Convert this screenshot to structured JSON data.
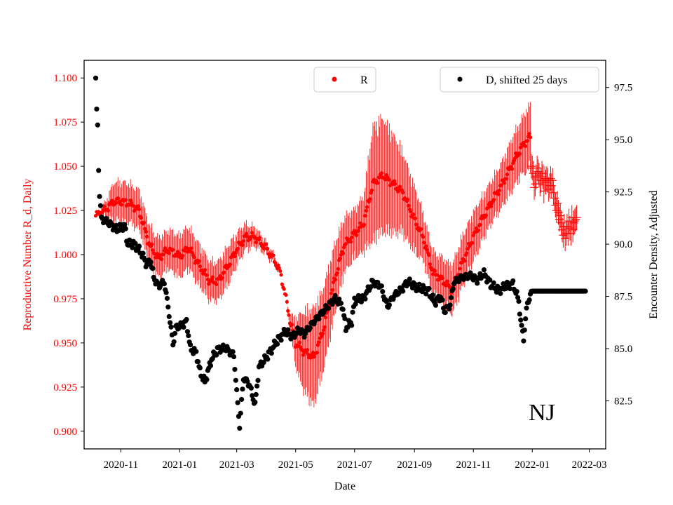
{
  "chart_data": {
    "type": "scatter",
    "state_label": "NJ",
    "xlabel": "Date",
    "ylabel_left": "Reproductive Number R_d, Daily",
    "ylabel_right": "Encounter Density, Adjusted",
    "x_range": [
      "2020-09-24",
      "2022-03-18"
    ],
    "ylim_left": [
      0.89,
      1.11
    ],
    "ylim_right": [
      80.2,
      98.8
    ],
    "x_ticks": [
      {
        "date": "2020-11-01",
        "label": "2020-11"
      },
      {
        "date": "2021-01-01",
        "label": "2021-01"
      },
      {
        "date": "2021-03-01",
        "label": "2021-03"
      },
      {
        "date": "2021-05-01",
        "label": "2021-05"
      },
      {
        "date": "2021-07-01",
        "label": "2021-07"
      },
      {
        "date": "2021-09-01",
        "label": "2021-09"
      },
      {
        "date": "2021-11-01",
        "label": "2021-11"
      },
      {
        "date": "2022-01-01",
        "label": "2022-01"
      },
      {
        "date": "2022-03-01",
        "label": "2022-03"
      }
    ],
    "y_ticks_left": [
      {
        "value": 0.9,
        "label": "0.900"
      },
      {
        "value": 0.925,
        "label": "0.925"
      },
      {
        "value": 0.95,
        "label": "0.950"
      },
      {
        "value": 0.975,
        "label": "0.975"
      },
      {
        "value": 1.0,
        "label": "1.000"
      },
      {
        "value": 1.025,
        "label": "1.025"
      },
      {
        "value": 1.05,
        "label": "1.050"
      },
      {
        "value": 1.075,
        "label": "1.075"
      },
      {
        "value": 1.1,
        "label": "1.100"
      }
    ],
    "y_ticks_right": [
      {
        "value": 82.5,
        "label": "82.5"
      },
      {
        "value": 85.0,
        "label": "85.0"
      },
      {
        "value": 87.5,
        "label": "87.5"
      },
      {
        "value": 90.0,
        "label": "90.0"
      },
      {
        "value": 92.5,
        "label": "92.5"
      },
      {
        "value": 95.0,
        "label": "95.0"
      },
      {
        "value": 97.5,
        "label": "97.5"
      }
    ],
    "legend": [
      {
        "label": "R",
        "color": "#ff0000",
        "placement": "top-center"
      },
      {
        "label": "D, shifted 25 days",
        "color": "#000000",
        "placement": "top-right"
      }
    ],
    "series": [
      {
        "name": "R",
        "axis": "left",
        "color": "#ff0000",
        "marker": "dot with daily error bars",
        "key_points": [
          [
            "2020-10-06",
            1.022,
            0.0
          ],
          [
            "2020-10-15",
            1.025,
            0.004
          ],
          [
            "2020-10-25",
            1.03,
            0.012
          ],
          [
            "2020-11-03",
            1.03,
            0.012
          ],
          [
            "2020-11-10",
            1.029,
            0.012
          ],
          [
            "2020-11-20",
            1.025,
            0.012
          ],
          [
            "2020-12-01",
            1.005,
            0.012
          ],
          [
            "2020-12-10",
            0.998,
            0.012
          ],
          [
            "2020-12-20",
            1.003,
            0.012
          ],
          [
            "2021-01-01",
            0.999,
            0.013
          ],
          [
            "2021-01-10",
            1.004,
            0.013
          ],
          [
            "2021-01-20",
            0.995,
            0.013
          ],
          [
            "2021-02-01",
            0.985,
            0.012
          ],
          [
            "2021-02-10",
            0.985,
            0.012
          ],
          [
            "2021-02-20",
            0.994,
            0.012
          ],
          [
            "2021-03-01",
            1.003,
            0.01
          ],
          [
            "2021-03-10",
            1.01,
            0.008
          ],
          [
            "2021-03-20",
            1.01,
            0.006
          ],
          [
            "2021-03-31",
            1.004,
            0.004
          ],
          [
            "2021-04-10",
            0.996,
            0.003
          ],
          [
            "2021-04-15",
            0.99,
            0.001
          ],
          [
            "2021-04-20",
            0.978,
            0.0
          ],
          [
            "2021-04-25",
            0.963,
            0.004
          ],
          [
            "2021-05-01",
            0.95,
            0.015
          ],
          [
            "2021-05-10",
            0.945,
            0.025
          ],
          [
            "2021-05-20",
            0.942,
            0.03
          ],
          [
            "2021-05-30",
            0.958,
            0.025
          ],
          [
            "2021-06-10",
            0.985,
            0.022
          ],
          [
            "2021-06-20",
            1.005,
            0.017
          ],
          [
            "2021-07-01",
            1.012,
            0.015
          ],
          [
            "2021-07-10",
            1.017,
            0.017
          ],
          [
            "2021-07-20",
            1.04,
            0.035
          ],
          [
            "2021-07-30",
            1.045,
            0.035
          ],
          [
            "2021-08-10",
            1.04,
            0.03
          ],
          [
            "2021-08-20",
            1.035,
            0.025
          ],
          [
            "2021-09-01",
            1.02,
            0.02
          ],
          [
            "2021-09-10",
            1.01,
            0.015
          ],
          [
            "2021-09-20",
            0.99,
            0.013
          ],
          [
            "2021-10-01",
            0.985,
            0.014
          ],
          [
            "2021-10-10",
            0.98,
            0.015
          ],
          [
            "2021-10-20",
            0.995,
            0.016
          ],
          [
            "2021-11-01",
            1.01,
            0.015
          ],
          [
            "2021-11-10",
            1.02,
            0.014
          ],
          [
            "2021-11-20",
            1.03,
            0.013
          ],
          [
            "2021-12-01",
            1.04,
            0.014
          ],
          [
            "2021-12-10",
            1.05,
            0.016
          ],
          [
            "2021-12-20",
            1.06,
            0.017
          ],
          [
            "2021-12-30",
            1.067,
            0.02
          ]
        ],
        "crosses": [
          [
            1.05,
            0.007
          ],
          [
            1.049,
            0.007
          ],
          [
            1.046,
            0.007
          ],
          [
            1.038,
            0.007
          ],
          [
            1.04,
            0.007
          ],
          [
            1.044,
            0.007
          ],
          [
            1.049,
            0.007
          ],
          [
            1.047,
            0.007
          ],
          [
            1.045,
            0.007
          ],
          [
            1.04,
            0.007
          ],
          [
            1.042,
            0.007
          ],
          [
            1.046,
            0.007
          ],
          [
            1.044,
            0.007
          ],
          [
            1.036,
            0.007
          ],
          [
            1.043,
            0.007
          ],
          [
            1.041,
            0.007
          ],
          [
            1.043,
            0.007
          ],
          [
            1.042,
            0.007
          ],
          [
            1.037,
            0.007
          ],
          [
            1.039,
            0.007
          ],
          [
            1.043,
            0.007
          ],
          [
            1.039,
            0.007
          ],
          [
            1.042,
            0.007
          ],
          [
            1.035,
            0.007
          ],
          [
            1.032,
            0.007
          ],
          [
            1.028,
            0.007
          ],
          [
            1.025,
            0.007
          ],
          [
            1.029,
            0.007
          ],
          [
            1.024,
            0.007
          ],
          [
            1.02,
            0.007
          ],
          [
            1.022,
            0.007
          ],
          [
            1.018,
            0.007
          ],
          [
            1.014,
            0.007
          ],
          [
            1.011,
            0.007
          ],
          [
            1.016,
            0.007
          ],
          [
            1.009,
            0.007
          ],
          [
            1.012,
            0.007
          ],
          [
            1.016,
            0.007
          ],
          [
            1.012,
            0.007
          ],
          [
            1.019,
            0.007
          ],
          [
            1.015,
            0.007
          ],
          [
            1.012,
            0.007
          ],
          [
            1.021,
            0.007
          ],
          [
            1.014,
            0.007
          ],
          [
            1.018,
            0.007
          ],
          [
            1.019,
            0.007
          ],
          [
            1.02,
            0.007
          ],
          [
            1.021,
            0.007
          ]
        ]
      },
      {
        "name": "D, shifted 25 days",
        "axis": "right",
        "color": "#000000",
        "marker": "dot",
        "key_points": [
          [
            "2020-10-06",
            97.95
          ],
          [
            "2020-10-07",
            96.35
          ],
          [
            "2020-10-08",
            95.65
          ],
          [
            "2020-10-09",
            93.6
          ],
          [
            "2020-10-10",
            92.4
          ],
          [
            "2020-10-12",
            91.2
          ],
          [
            "2020-10-20",
            91.0
          ],
          [
            "2020-10-28",
            90.7
          ],
          [
            "2020-11-05",
            90.9
          ],
          [
            "2020-11-08",
            90.0
          ],
          [
            "2020-11-15",
            90.0
          ],
          [
            "2020-11-22",
            89.6
          ],
          [
            "2020-11-28",
            89.0
          ],
          [
            "2020-12-02",
            89.2
          ],
          [
            "2020-12-05",
            88.4
          ],
          [
            "2020-12-10",
            88.0
          ],
          [
            "2020-12-16",
            88.2
          ],
          [
            "2020-12-20",
            87.0
          ],
          [
            "2020-12-22",
            86.3
          ],
          [
            "2020-12-25",
            85.2
          ],
          [
            "2020-12-28",
            86.0
          ],
          [
            "2021-01-03",
            86.1
          ],
          [
            "2021-01-08",
            86.3
          ],
          [
            "2021-01-12",
            85.0
          ],
          [
            "2021-01-18",
            84.8
          ],
          [
            "2021-01-22",
            83.9
          ],
          [
            "2021-01-27",
            83.4
          ],
          [
            "2021-02-03",
            84.5
          ],
          [
            "2021-02-10",
            85.0
          ],
          [
            "2021-02-18",
            85.0
          ],
          [
            "2021-02-26",
            84.7
          ],
          [
            "2021-03-01",
            82.9
          ],
          [
            "2021-03-04",
            81.3
          ],
          [
            "2021-03-08",
            83.6
          ],
          [
            "2021-03-14",
            83.3
          ],
          [
            "2021-03-20",
            82.3
          ],
          [
            "2021-03-24",
            84.1
          ],
          [
            "2021-04-01",
            84.6
          ],
          [
            "2021-04-08",
            85.1
          ],
          [
            "2021-04-14",
            85.5
          ],
          [
            "2021-04-20",
            85.8
          ],
          [
            "2021-04-28",
            85.6
          ],
          [
            "2021-05-05",
            85.9
          ],
          [
            "2021-05-10",
            85.7
          ],
          [
            "2021-05-20",
            86.3
          ],
          [
            "2021-06-01",
            86.9
          ],
          [
            "2021-06-10",
            87.4
          ],
          [
            "2021-06-18",
            87.1
          ],
          [
            "2021-06-22",
            86.0
          ],
          [
            "2021-06-28",
            86.3
          ],
          [
            "2021-07-01",
            87.3
          ],
          [
            "2021-07-10",
            87.4
          ],
          [
            "2021-07-20",
            88.2
          ],
          [
            "2021-07-28",
            88.0
          ],
          [
            "2021-08-04",
            87.0
          ],
          [
            "2021-08-10",
            87.5
          ],
          [
            "2021-08-18",
            87.8
          ],
          [
            "2021-08-25",
            88.2
          ],
          [
            "2021-09-05",
            87.9
          ],
          [
            "2021-09-15",
            87.8
          ],
          [
            "2021-09-22",
            87.2
          ],
          [
            "2021-09-28",
            87.5
          ],
          [
            "2021-10-02",
            86.8
          ],
          [
            "2021-10-08",
            87.1
          ],
          [
            "2021-10-12",
            88.2
          ],
          [
            "2021-10-20",
            88.4
          ],
          [
            "2021-10-28",
            88.5
          ],
          [
            "2021-11-05",
            88.3
          ],
          [
            "2021-11-12",
            88.6
          ],
          [
            "2021-11-20",
            88.0
          ],
          [
            "2021-11-28",
            87.8
          ],
          [
            "2021-12-05",
            88.0
          ],
          [
            "2021-12-12",
            88.1
          ],
          [
            "2021-12-18",
            87.3
          ],
          [
            "2021-12-20",
            86.3
          ],
          [
            "2021-12-23",
            85.5
          ],
          [
            "2021-12-25",
            86.4
          ],
          [
            "2021-12-27",
            87.2
          ],
          [
            "2022-01-01",
            87.75
          ],
          [
            "2022-02-25",
            87.75
          ]
        ]
      }
    ]
  }
}
